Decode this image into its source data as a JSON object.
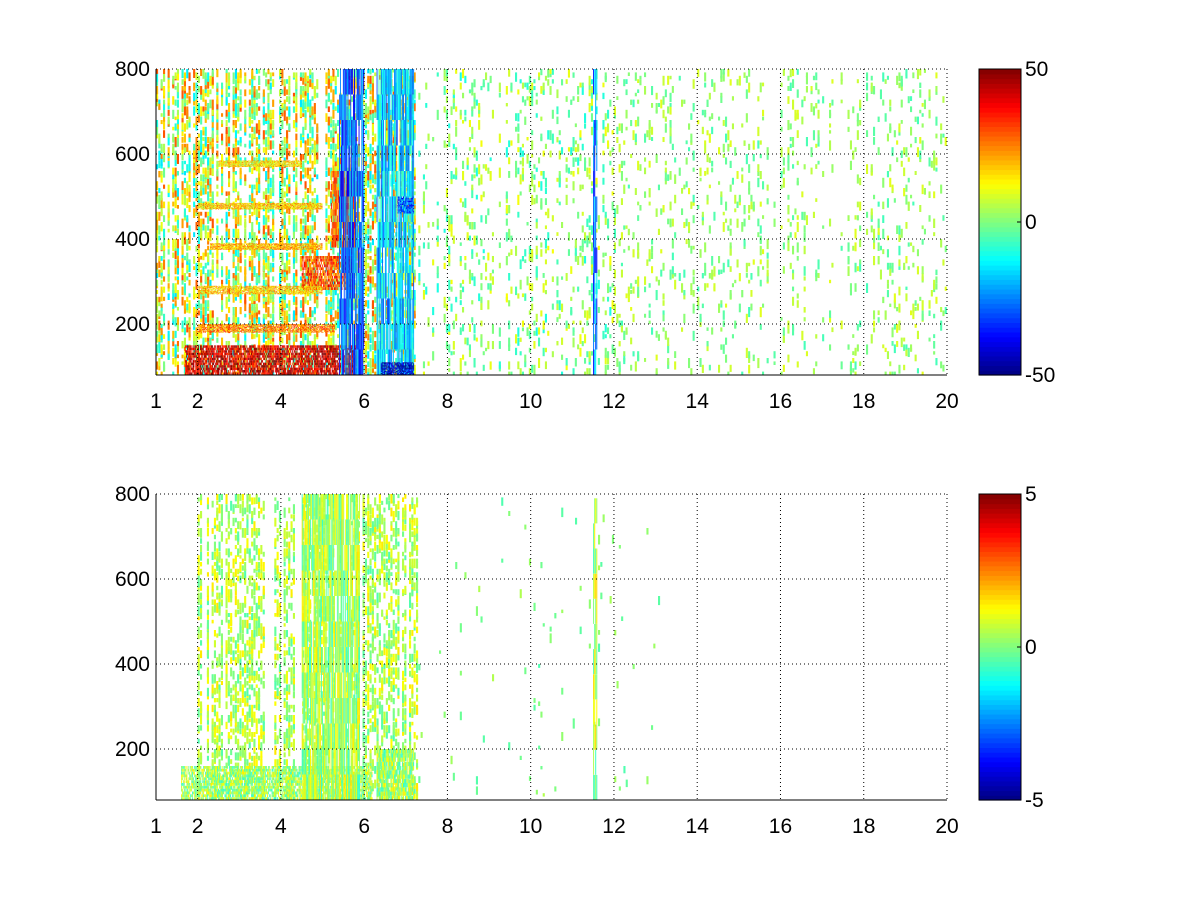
{
  "chart_data": [
    {
      "type": "heatmap",
      "title": "",
      "xlabel": "",
      "ylabel": "",
      "xlim": [
        1,
        20
      ],
      "ylim": [
        80,
        800
      ],
      "x_ticks": [
        1,
        2,
        4,
        6,
        8,
        10,
        12,
        14,
        16,
        18,
        20
      ],
      "x_tick_labels": [
        "1",
        "2",
        "4",
        "6",
        "8",
        "10",
        "12",
        "14",
        "16",
        "18",
        "20"
      ],
      "y_ticks": [
        200,
        400,
        600,
        800
      ],
      "y_tick_labels": [
        "200",
        "400",
        "600",
        "800"
      ],
      "grid": true,
      "grid_style": "dotted",
      "colormap": "jet",
      "colorbar": {
        "clim": [
          -50,
          50
        ],
        "tick_labels": [
          "50",
          "0",
          "-50"
        ],
        "ticks": [
          50,
          0,
          -50
        ]
      },
      "regions": [
        {
          "x": [
            1.7,
            5.8
          ],
          "y": [
            80,
            150
          ],
          "value": 42
        },
        {
          "x": [
            4.5,
            5.7
          ],
          "y": [
            280,
            360
          ],
          "value": 30
        },
        {
          "x": [
            5.2,
            5.8
          ],
          "y": [
            380,
            560
          ],
          "value": 28
        },
        {
          "x": [
            2.0,
            5.3
          ],
          "y": [
            180,
            200
          ],
          "value": 25
        },
        {
          "x": [
            2.0,
            5.0
          ],
          "y": [
            270,
            290
          ],
          "value": 18
        },
        {
          "x": [
            2.3,
            5.0
          ],
          "y": [
            375,
            390
          ],
          "value": 20
        },
        {
          "x": [
            2.0,
            5.0
          ],
          "y": [
            470,
            485
          ],
          "value": 18
        },
        {
          "x": [
            2.5,
            4.5
          ],
          "y": [
            570,
            585
          ],
          "value": 15
        },
        {
          "x": [
            5.4,
            6.0
          ],
          "y": [
            80,
            800
          ],
          "value": -28
        },
        {
          "x": [
            6.3,
            7.2
          ],
          "y": [
            80,
            800
          ],
          "value": -18
        },
        {
          "x": [
            6.4,
            7.2
          ],
          "y": [
            80,
            110
          ],
          "value": -45
        },
        {
          "x": [
            6.8,
            7.2
          ],
          "y": [
            460,
            500
          ],
          "value": -30
        },
        {
          "x": [
            11.5,
            11.6
          ],
          "y": [
            80,
            800
          ],
          "value": -25
        }
      ],
      "scatter_density": [
        {
          "x": [
            1.0,
            7.3
          ],
          "density": 0.45,
          "range": [
            -15,
            30
          ]
        },
        {
          "x": [
            7.3,
            12.0
          ],
          "density": 0.12,
          "range": [
            -10,
            12
          ]
        },
        {
          "x": [
            12.0,
            20.0
          ],
          "density": 0.09,
          "range": [
            -6,
            10
          ]
        }
      ]
    },
    {
      "type": "heatmap",
      "title": "",
      "xlabel": "",
      "ylabel": "",
      "xlim": [
        1,
        20
      ],
      "ylim": [
        80,
        800
      ],
      "x_ticks": [
        1,
        2,
        4,
        6,
        8,
        10,
        12,
        14,
        16,
        18,
        20
      ],
      "x_tick_labels": [
        "1",
        "2",
        "4",
        "6",
        "8",
        "10",
        "12",
        "14",
        "16",
        "18",
        "20"
      ],
      "y_ticks": [
        200,
        400,
        600,
        800
      ],
      "y_tick_labels": [
        "200",
        "400",
        "600",
        "800"
      ],
      "grid": true,
      "grid_style": "dotted",
      "colormap": "jet",
      "colorbar": {
        "clim": [
          -5,
          5
        ],
        "tick_labels": [
          "5",
          "0",
          "-5"
        ],
        "ticks": [
          5,
          0,
          -5
        ]
      },
      "regions": [
        {
          "x": [
            1.6,
            6.2
          ],
          "y": [
            80,
            160
          ],
          "value": 0.3
        },
        {
          "x": [
            4.5,
            5.9
          ],
          "y": [
            80,
            800
          ],
          "value": 0.4
        },
        {
          "x": [
            6.3,
            7.2
          ],
          "y": [
            80,
            200
          ],
          "value": 0.3
        },
        {
          "x": [
            11.5,
            11.6
          ],
          "y": [
            80,
            790
          ],
          "value": 0.5
        }
      ],
      "scatter_density": [
        {
          "x": [
            2.0,
            7.3
          ],
          "density": 0.35,
          "range": [
            -0.5,
            1.5
          ]
        },
        {
          "x": [
            7.3,
            13.5
          ],
          "density": 0.01,
          "range": [
            -0.5,
            0.5
          ]
        }
      ]
    }
  ]
}
